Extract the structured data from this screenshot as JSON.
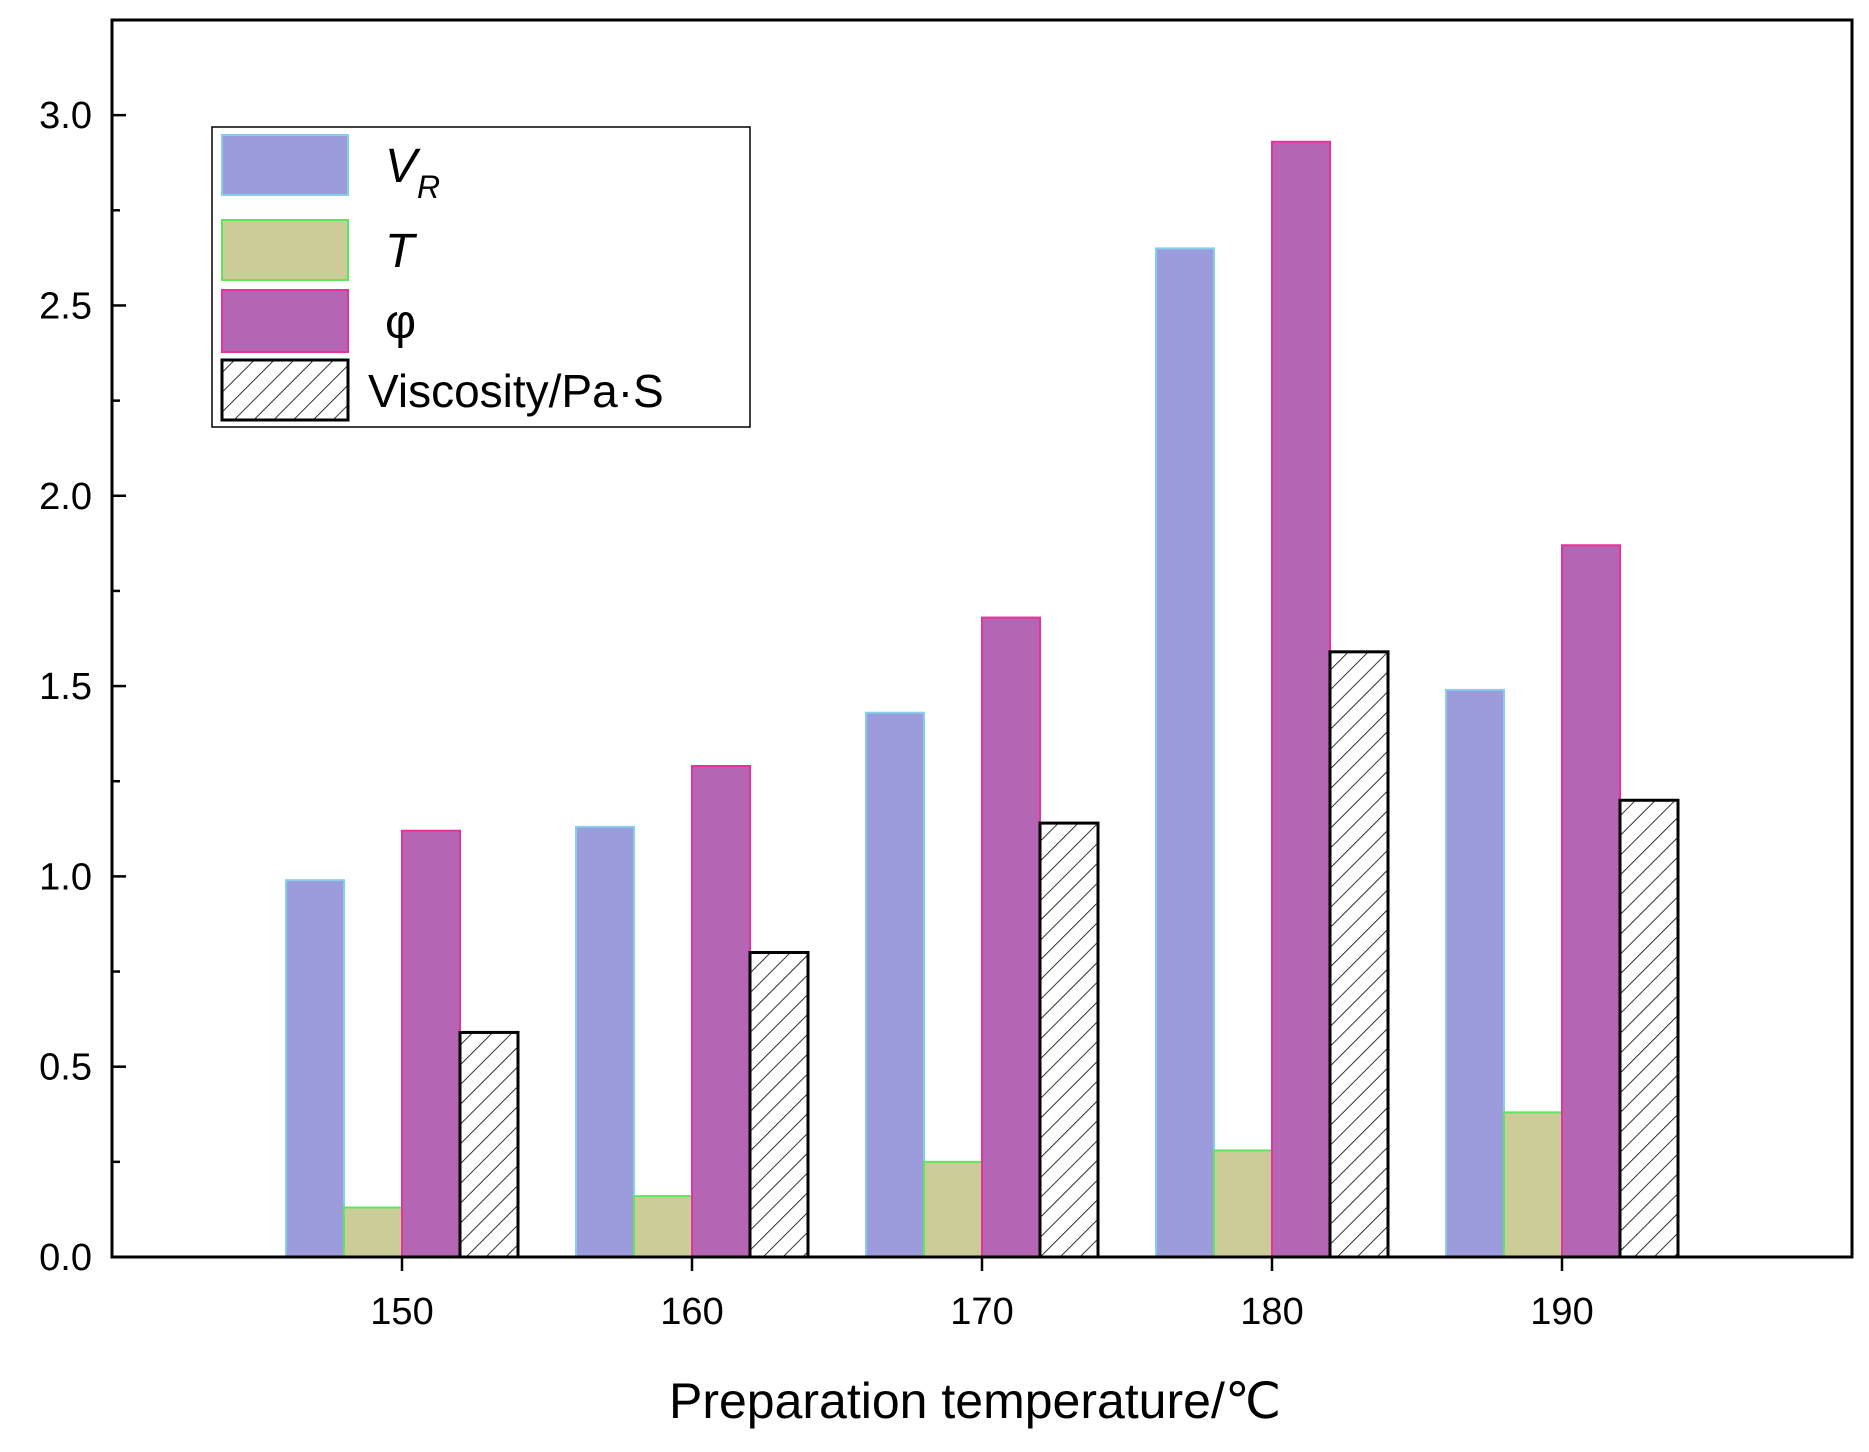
{
  "chart_data": {
    "type": "bar",
    "title": "",
    "xlabel": "Preparation temperature/℃",
    "ylabel": "",
    "ylim": [
      0,
      3.25
    ],
    "yticks": [
      "0.0",
      "0.5",
      "1.0",
      "1.5",
      "2.0",
      "2.5",
      "3.0"
    ],
    "ytick_values": [
      0,
      0.5,
      1.0,
      1.5,
      2.0,
      2.5,
      3.0
    ],
    "categories": [
      "150",
      "160",
      "170",
      "180",
      "190"
    ],
    "legend_position": "top-left",
    "grid": false,
    "series": [
      {
        "name": "V",
        "subscript": "R",
        "fill": "#9c9cdc",
        "stroke": "#87ceeb",
        "pattern": "solid",
        "values": [
          0.99,
          1.13,
          1.43,
          2.65,
          1.49
        ]
      },
      {
        "name": "T",
        "subscript": "",
        "fill": "#cccc99",
        "stroke": "#5ee65e",
        "pattern": "solid",
        "values": [
          0.13,
          0.16,
          0.25,
          0.28,
          0.38
        ]
      },
      {
        "name": "φ",
        "subscript": "",
        "fill": "#b466b4",
        "stroke": "#e6339a",
        "pattern": "solid",
        "values": [
          1.12,
          1.29,
          1.68,
          2.93,
          1.87
        ]
      },
      {
        "name": "Viscosity/Pa·S",
        "subscript": "",
        "fill": "#ffffff",
        "stroke": "#000000",
        "pattern": "hatch",
        "values": [
          0.59,
          0.8,
          1.14,
          1.59,
          1.2
        ]
      }
    ]
  }
}
